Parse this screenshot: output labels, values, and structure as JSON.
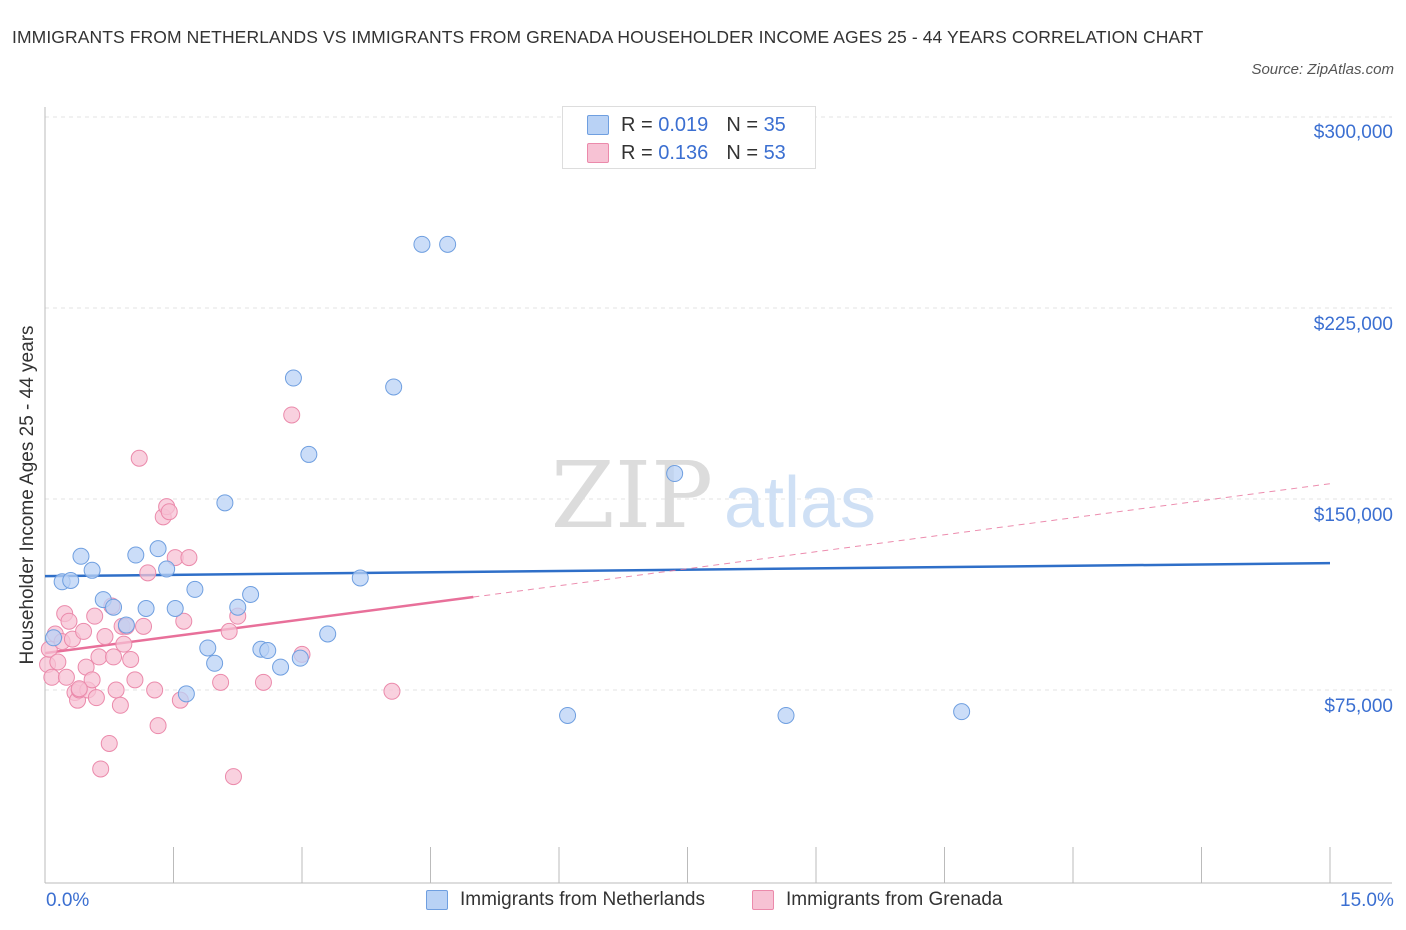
{
  "title": "IMMIGRANTS FROM NETHERLANDS VS IMMIGRANTS FROM GRENADA HOUSEHOLDER INCOME AGES 25 - 44 YEARS CORRELATION CHART",
  "source": "Source: ZipAtlas.com",
  "watermark": {
    "zip": "ZIP",
    "atlas": "atlas"
  },
  "colors": {
    "netherlands_fill": "#b9d2f5",
    "netherlands_stroke": "#6f9fe0",
    "netherlands_line": "#2f6fc8",
    "grenada_fill": "#f7c2d4",
    "grenada_stroke": "#eb8aab",
    "grenada_line": "#e8709a",
    "accent_text": "#3b6fd1",
    "grid": "#e3e3e3"
  },
  "legend": {
    "rows": [
      {
        "r_label": "R = ",
        "r_value": "0.019",
        "n_label": "N = ",
        "n_value": "35"
      },
      {
        "r_label": "R = ",
        "r_value": "0.136",
        "n_label": "N = ",
        "n_value": "53"
      }
    ]
  },
  "chart_data": {
    "type": "scatter",
    "title": "IMMIGRANTS FROM NETHERLANDS VS IMMIGRANTS FROM GRENADA HOUSEHOLDER INCOME AGES 25 - 44 YEARS CORRELATION CHART",
    "xlabel": "",
    "ylabel": "Householder Income Ages 25 - 44 years",
    "xlim": [
      0,
      15
    ],
    "ylim": [
      0,
      300000
    ],
    "x_tick_labels": [
      "0.0%",
      "15.0%"
    ],
    "y_ticks": [
      75000,
      150000,
      225000,
      300000
    ],
    "y_tick_labels": [
      "$75,000",
      "$150,000",
      "$225,000",
      "$300,000"
    ],
    "grid": true,
    "series": [
      {
        "name": "Immigrants from Netherlands",
        "r": 0.019,
        "n": 35,
        "trend": {
          "x0": 0,
          "y0": 119700,
          "x1": 15,
          "y1": 124800,
          "dashed_to": null
        },
        "points": [
          [
            0.1,
            95500
          ],
          [
            0.2,
            117500
          ],
          [
            0.3,
            118000
          ],
          [
            0.42,
            127500
          ],
          [
            0.55,
            122000
          ],
          [
            0.68,
            110500
          ],
          [
            0.8,
            107500
          ],
          [
            0.95,
            100500
          ],
          [
            1.06,
            128000
          ],
          [
            1.18,
            107000
          ],
          [
            1.32,
            130500
          ],
          [
            1.42,
            122500
          ],
          [
            1.52,
            107000
          ],
          [
            1.75,
            114500
          ],
          [
            1.9,
            91500
          ],
          [
            1.98,
            85500
          ],
          [
            2.1,
            148500
          ],
          [
            2.25,
            107500
          ],
          [
            2.4,
            112500
          ],
          [
            2.52,
            91000
          ],
          [
            2.6,
            90500
          ],
          [
            2.75,
            84000
          ],
          [
            2.9,
            197500
          ],
          [
            2.98,
            87500
          ],
          [
            3.08,
            167500
          ],
          [
            3.3,
            97000
          ],
          [
            3.68,
            119000
          ],
          [
            4.07,
            194000
          ],
          [
            4.4,
            250000
          ],
          [
            4.7,
            250000
          ],
          [
            6.1,
            65000
          ],
          [
            7.35,
            160000
          ],
          [
            8.65,
            65000
          ],
          [
            10.7,
            66500
          ],
          [
            1.65,
            73500
          ]
        ]
      },
      {
        "name": "Immigrants from Grenada",
        "r": 0.136,
        "n": 53,
        "trend": {
          "x0": 0,
          "y0": 89500,
          "x1": 5.0,
          "y1": 111500,
          "dashed_to": {
            "x": 15,
            "y": 156000
          }
        },
        "points": [
          [
            0.03,
            85000
          ],
          [
            0.05,
            91000
          ],
          [
            0.08,
            80000
          ],
          [
            0.12,
            97000
          ],
          [
            0.15,
            86000
          ],
          [
            0.2,
            94000
          ],
          [
            0.23,
            105000
          ],
          [
            0.25,
            80000
          ],
          [
            0.28,
            102000
          ],
          [
            0.32,
            95000
          ],
          [
            0.35,
            74000
          ],
          [
            0.38,
            71000
          ],
          [
            0.4,
            75000
          ],
          [
            0.45,
            98000
          ],
          [
            0.48,
            84000
          ],
          [
            0.5,
            75000
          ],
          [
            0.55,
            79000
          ],
          [
            0.58,
            104000
          ],
          [
            0.6,
            72000
          ],
          [
            0.63,
            88000
          ],
          [
            0.65,
            44000
          ],
          [
            0.7,
            96000
          ],
          [
            0.75,
            54000
          ],
          [
            0.78,
            108000
          ],
          [
            0.8,
            88000
          ],
          [
            0.83,
            75000
          ],
          [
            0.88,
            69000
          ],
          [
            0.9,
            100000
          ],
          [
            0.95,
            100000
          ],
          [
            1.0,
            87000
          ],
          [
            1.05,
            79000
          ],
          [
            1.1,
            166000
          ],
          [
            1.15,
            100000
          ],
          [
            1.2,
            121000
          ],
          [
            1.28,
            75000
          ],
          [
            1.32,
            61000
          ],
          [
            1.38,
            143000
          ],
          [
            1.42,
            147000
          ],
          [
            1.45,
            145000
          ],
          [
            1.52,
            127000
          ],
          [
            1.58,
            71000
          ],
          [
            1.62,
            102000
          ],
          [
            1.68,
            127000
          ],
          [
            2.05,
            78000
          ],
          [
            2.15,
            98000
          ],
          [
            2.2,
            41000
          ],
          [
            2.25,
            104000
          ],
          [
            2.55,
            78000
          ],
          [
            2.88,
            183000
          ],
          [
            3.0,
            89000
          ],
          [
            4.05,
            74500
          ],
          [
            0.4,
            75500
          ],
          [
            0.92,
            93000
          ]
        ]
      }
    ]
  },
  "bottom_legend": [
    "Immigrants from Netherlands",
    "Immigrants from Grenada"
  ]
}
